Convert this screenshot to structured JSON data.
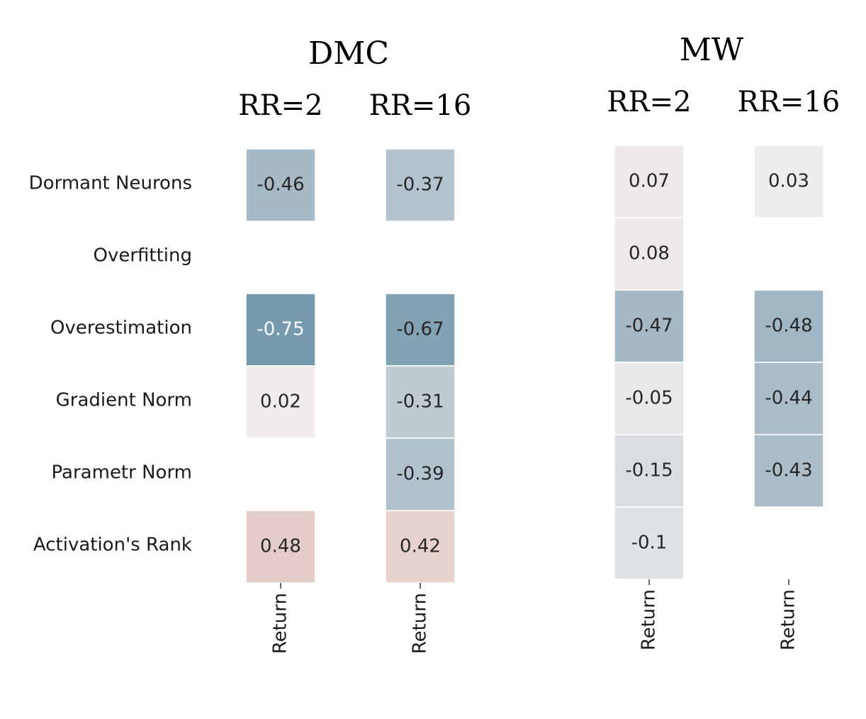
{
  "chart_data": {
    "type": "heatmap",
    "rows": [
      "Dormant Neurons",
      "Overfitting",
      "Overestimation",
      "Gradient Norm",
      "Parametr Norm",
      "Activation's Rank"
    ],
    "x_tick_label": "Return",
    "colormap": {
      "negative": "#6e93a9",
      "neutral": "#f0eeee",
      "positive": "#dcb7ae",
      "vmin": -0.8,
      "vmax": 0.8
    },
    "groups": [
      {
        "title": "DMC",
        "columns": [
          {
            "title": "RR=2",
            "values": [
              -0.46,
              null,
              -0.75,
              0.02,
              null,
              0.48
            ],
            "labels": [
              "-0.46",
              "",
              "-0.75",
              "0.02",
              "",
              "0.48"
            ]
          },
          {
            "title": "RR=16",
            "values": [
              -0.37,
              null,
              -0.67,
              -0.31,
              -0.39,
              0.42
            ],
            "labels": [
              "-0.37",
              "",
              "-0.67",
              "-0.31",
              "-0.39",
              "0.42"
            ]
          }
        ]
      },
      {
        "title": "MW",
        "columns": [
          {
            "title": "RR=2",
            "values": [
              0.07,
              0.08,
              -0.47,
              -0.05,
              -0.15,
              -0.1
            ],
            "labels": [
              "0.07",
              "0.08",
              "-0.47",
              "-0.05",
              "-0.15",
              "-0.1"
            ]
          },
          {
            "title": "RR=16",
            "values": [
              0.03,
              null,
              -0.48,
              -0.44,
              -0.43,
              null
            ],
            "labels": [
              "0.03",
              "",
              "-0.48",
              "-0.44",
              "-0.43",
              ""
            ]
          }
        ]
      }
    ]
  }
}
